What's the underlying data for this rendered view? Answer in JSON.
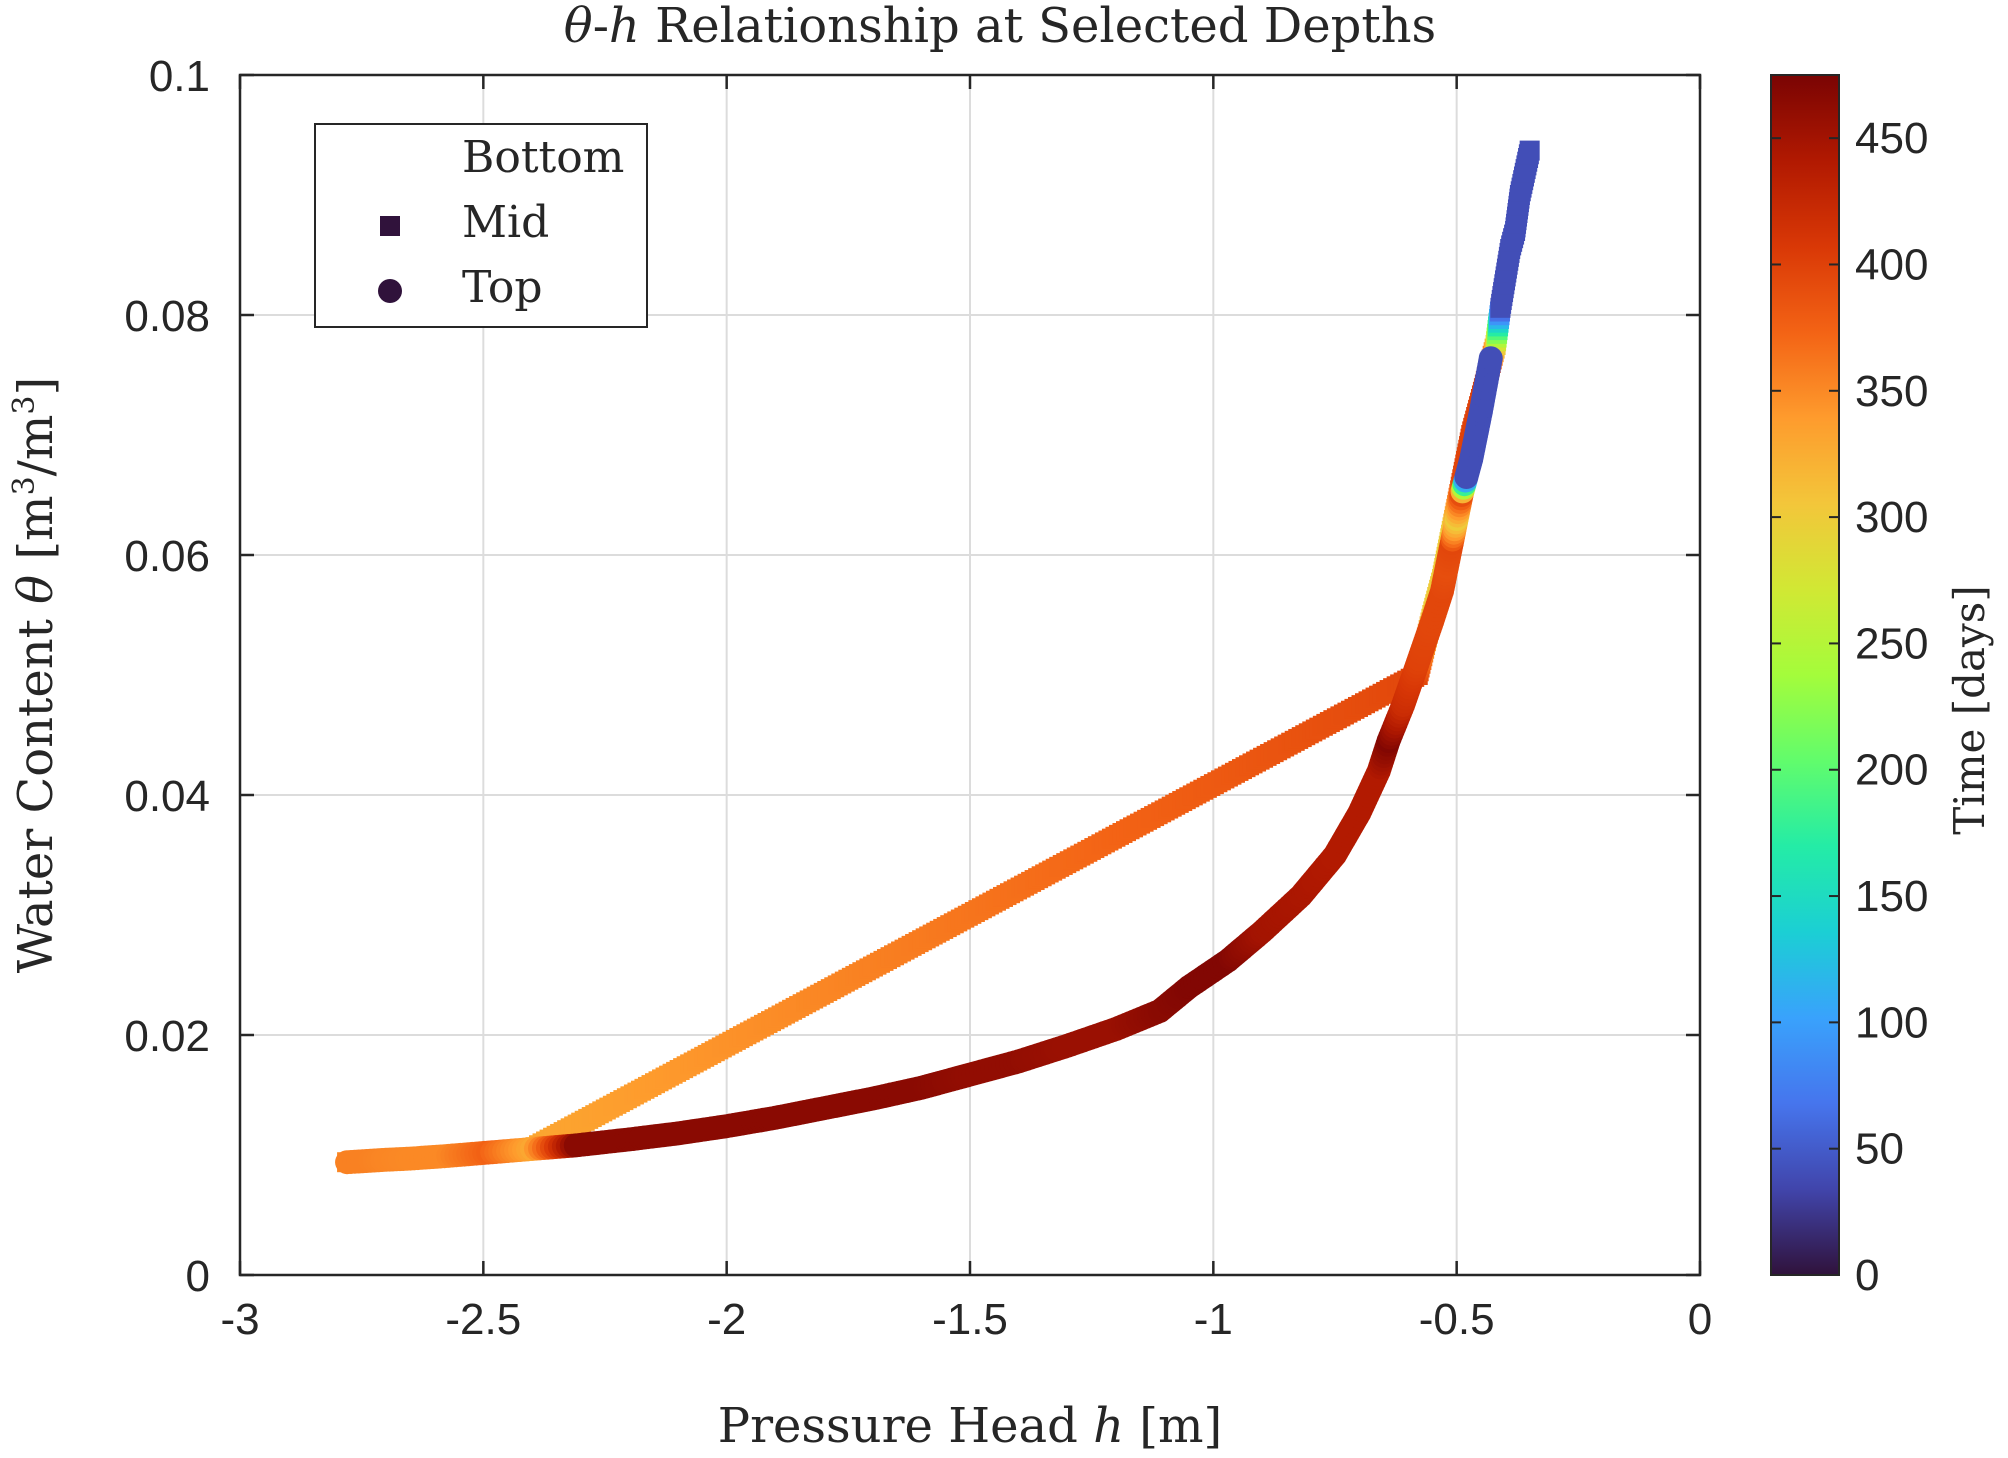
{
  "chart_data": {
    "type": "scatter",
    "title": "θ-h Relationship at Selected Depths",
    "title_parts": {
      "theta": "θ",
      "dash": "-",
      "h": "h",
      "rest": " Relationship at Selected Depths"
    },
    "xlabel": "Pressure Head h [m]",
    "xlabel_parts": {
      "pre": "Pressure Head ",
      "h": "h",
      "post": " [m]"
    },
    "ylabel": "Water Content θ [m3/m3]",
    "ylabel_parts": {
      "pre": "Water Content ",
      "theta": "θ",
      "b1": " [m",
      "sup1": "3",
      "mid": "/m",
      "sup2": "3",
      "b2": "]"
    },
    "xlim": [
      -3,
      0
    ],
    "ylim": [
      0,
      0.1
    ],
    "xticks": [
      -3,
      -2.5,
      -2,
      -1.5,
      -1,
      -0.5,
      0
    ],
    "xtick_labels": [
      "-3",
      "-2.5",
      "-2",
      "-1.5",
      "-1",
      "-0.5",
      "0"
    ],
    "yticks": [
      0,
      0.02,
      0.04,
      0.06,
      0.08,
      0.1
    ],
    "ytick_labels": [
      "0",
      "0.02",
      "0.04",
      "0.06",
      "0.08",
      "0.1"
    ],
    "grid": true,
    "legend_position": "top-left",
    "legend": [
      {
        "label": "Bottom",
        "marker": "none"
      },
      {
        "label": "Mid",
        "marker": "square"
      },
      {
        "label": "Top",
        "marker": "circle"
      }
    ],
    "colorbar": {
      "label": "Time [days]",
      "range": [
        0,
        475
      ],
      "ticks": [
        0,
        50,
        100,
        150,
        200,
        250,
        300,
        350,
        400,
        450
      ],
      "tick_labels": [
        "0",
        "50",
        "100",
        "150",
        "200",
        "250",
        "300",
        "350",
        "400",
        "450"
      ],
      "colormap_stops": [
        "#30123b",
        "#4145ab",
        "#4675ed",
        "#39a2fc",
        "#1bcfd4",
        "#24eca6",
        "#61fc6c",
        "#a4fc3b",
        "#d1e834",
        "#f3c63a",
        "#fe9b2d",
        "#f36315",
        "#d93806",
        "#b11901",
        "#7a0403"
      ]
    },
    "series": [
      {
        "name": "Top",
        "marker": "circle",
        "points": [
          [
            -2.78,
            0.0094,
            355
          ],
          [
            -2.74,
            0.0095,
            355
          ],
          [
            -2.7,
            0.0096,
            352
          ],
          [
            -2.65,
            0.0097,
            350
          ],
          [
            -2.58,
            0.0099,
            350
          ],
          [
            -2.49,
            0.0102,
            375
          ],
          [
            -2.4,
            0.0105,
            330
          ],
          [
            -2.31,
            0.0108,
            465
          ],
          [
            -2.2,
            0.0113,
            465
          ],
          [
            -2.1,
            0.0118,
            465
          ],
          [
            -2.0,
            0.0124,
            465
          ],
          [
            -1.9,
            0.0131,
            465
          ],
          [
            -1.8,
            0.0139,
            465
          ],
          [
            -1.7,
            0.0147,
            465
          ],
          [
            -1.6,
            0.0156,
            465
          ],
          [
            -1.5,
            0.0167,
            460
          ],
          [
            -1.4,
            0.0178,
            460
          ],
          [
            -1.3,
            0.0191,
            455
          ],
          [
            -1.2,
            0.0205,
            455
          ],
          [
            -1.11,
            0.022,
            465
          ],
          [
            -1.05,
            0.024,
            470
          ],
          [
            -0.97,
            0.0262,
            470
          ],
          [
            -0.9,
            0.0286,
            450
          ],
          [
            -0.82,
            0.0316,
            445
          ],
          [
            -0.75,
            0.035,
            440
          ],
          [
            -0.7,
            0.0385,
            440
          ],
          [
            -0.66,
            0.042,
            440
          ],
          [
            -0.64,
            0.0445,
            470
          ],
          [
            -0.61,
            0.0475,
            420
          ],
          [
            -0.58,
            0.051,
            400
          ],
          [
            -0.55,
            0.0545,
            395
          ],
          [
            -0.53,
            0.057,
            395
          ],
          [
            -0.52,
            0.059,
            390
          ],
          [
            -0.51,
            0.061,
            395
          ],
          [
            -0.5,
            0.063,
            300
          ],
          [
            -0.49,
            0.065,
            390
          ],
          [
            -0.48,
            0.0665,
            40
          ],
          [
            -0.47,
            0.068,
            40
          ],
          [
            -0.46,
            0.07,
            40
          ],
          [
            -0.45,
            0.072,
            40
          ],
          [
            -0.43,
            0.0764,
            40
          ]
        ]
      },
      {
        "name": "Mid",
        "marker": "square",
        "points": [
          [
            -2.78,
            0.0094,
            350
          ],
          [
            -2.7,
            0.0096,
            352
          ],
          [
            -2.55,
            0.01,
            350
          ],
          [
            -2.4,
            0.0105,
            330
          ],
          [
            -0.58,
            0.05,
            395
          ],
          [
            -0.55,
            0.055,
            300
          ],
          [
            -0.53,
            0.058,
            300
          ],
          [
            -0.51,
            0.062,
            300
          ],
          [
            -0.49,
            0.066,
            395
          ],
          [
            -0.47,
            0.07,
            400
          ],
          [
            -0.45,
            0.073,
            400
          ],
          [
            -0.44,
            0.0745,
            400
          ],
          [
            -0.43,
            0.076,
            400
          ],
          [
            -0.42,
            0.0775,
            300
          ],
          [
            -0.41,
            0.0806,
            40
          ],
          [
            -0.39,
            0.0855,
            40
          ],
          [
            -0.38,
            0.087,
            40
          ],
          [
            -0.37,
            0.09,
            40
          ],
          [
            -0.35,
            0.0937,
            40
          ]
        ]
      }
    ]
  }
}
